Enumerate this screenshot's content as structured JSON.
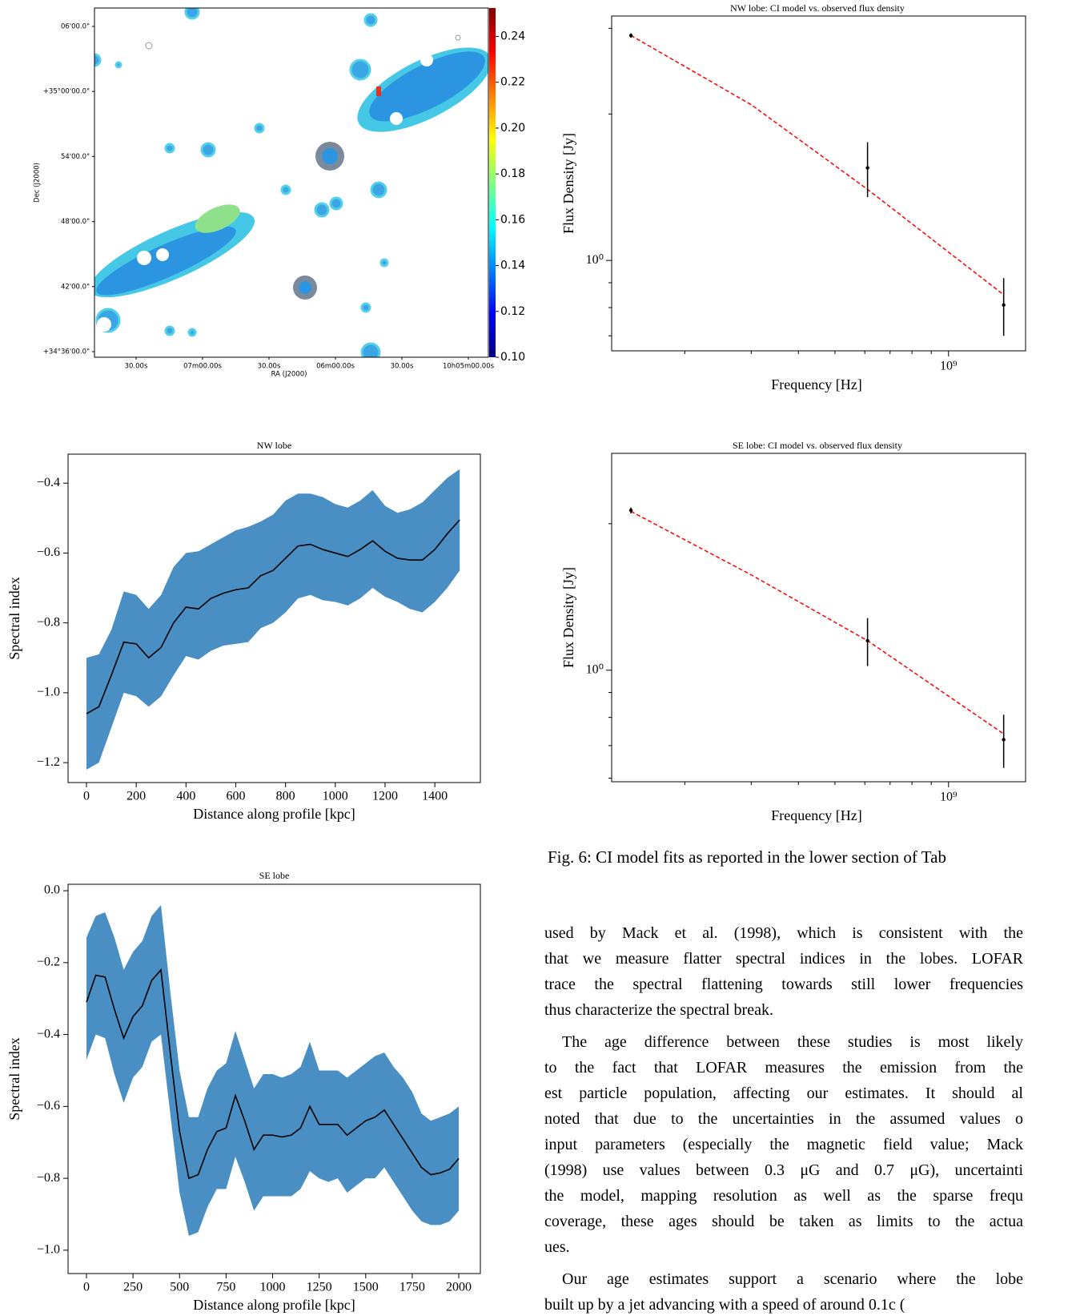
{
  "chart_data": [
    {
      "type": "image",
      "xlabel": "RA (J2000)",
      "ylabel": "Dec (J2000)",
      "xtick_labels": [
        "30.00s",
        "07m00.00s",
        "30.00s",
        "06m00.00s",
        "30.00s",
        "10h05m00.00s"
      ],
      "ytick_labels": [
        "06'00.0\"",
        "+35°00'00.0\"",
        "54'00.0\"",
        "48'00.0\"",
        "42'00.0\"",
        "+34°36'00.0\""
      ],
      "colorbar": {
        "colormap": "jet",
        "clim": [
          0.1,
          0.2524
        ],
        "ticks": [
          {
            "value": 0.1,
            "label": "0.10"
          },
          0.12,
          0.14,
          0.16,
          0.18,
          {
            "value": 0.2,
            "label": "0.20"
          },
          0.22,
          0.24
        ]
      }
    },
    {
      "type": "errorbar",
      "title": "NW lobe: CI model vs. observed flux density",
      "xlabel": "Frequency [Hz]",
      "ylabel": "Flux Density [Jy]",
      "xscale": "log",
      "yscale": "log",
      "xlim": [
        128000000,
        1600000000
      ],
      "ylim": [
        0.652,
        3.18
      ],
      "xticks": [
        {
          "value": 1000000000,
          "label": "10⁹"
        }
      ],
      "yticks": [
        {
          "value": 1,
          "label": "10⁰"
        }
      ],
      "xminor": [
        200000000,
        300000000,
        400000000,
        500000000,
        600000000,
        700000000,
        800000000,
        900000000
      ],
      "yminor": [
        0.7,
        0.8,
        0.9,
        2,
        3
      ],
      "observed": {
        "x": [
          144000000,
          610000000,
          1400000000
        ],
        "values": [
          2.9,
          1.55,
          0.81
        ],
        "errors": [
          0.03,
          0.2,
          0.11
        ],
        "color": "#000000"
      },
      "model": {
        "x": [
          144000000,
          300000000,
          610000000,
          1400000000
        ],
        "values": [
          2.9,
          2.09,
          1.4,
          0.85
        ],
        "color": "#ff0000"
      }
    },
    {
      "type": "band",
      "title": "NW lobe",
      "xlabel": "Distance along profile [kpc]",
      "ylabel": "Spectral index",
      "xlim": [
        -74,
        1583
      ],
      "ylim": [
        -1.257,
        -0.317
      ],
      "xticks": [
        0,
        200,
        400,
        600,
        800,
        1000,
        1200,
        1400
      ],
      "yticks": [
        {
          "value": -0.4,
          "label": "−0.4"
        },
        {
          "value": -0.6,
          "label": "−0.6"
        },
        {
          "value": -0.8,
          "label": "−0.8"
        },
        {
          "value": -1.0,
          "label": "−1.0"
        },
        {
          "value": -1.2,
          "label": "−1.2"
        }
      ],
      "color": "#4a8fc4",
      "line_color": "#000000",
      "x": [
        0,
        50,
        100,
        150,
        200,
        250,
        300,
        350,
        400,
        450,
        500,
        550,
        600,
        650,
        700,
        750,
        800,
        850,
        900,
        950,
        1000,
        1050,
        1100,
        1150,
        1200,
        1250,
        1300,
        1350,
        1400,
        1450,
        1500
      ],
      "values": [
        -1.06,
        -1.04,
        -0.95,
        -0.855,
        -0.86,
        -0.9,
        -0.87,
        -0.8,
        -0.755,
        -0.76,
        -0.73,
        -0.715,
        -0.705,
        -0.7,
        -0.665,
        -0.65,
        -0.615,
        -0.58,
        -0.575,
        -0.59,
        -0.6,
        -0.61,
        -0.59,
        -0.565,
        -0.595,
        -0.615,
        -0.62,
        -0.62,
        -0.59,
        -0.545,
        -0.505
      ],
      "upper": [
        -0.9,
        -0.89,
        -0.82,
        -0.71,
        -0.72,
        -0.76,
        -0.72,
        -0.64,
        -0.6,
        -0.595,
        -0.575,
        -0.555,
        -0.535,
        -0.525,
        -0.51,
        -0.49,
        -0.45,
        -0.43,
        -0.43,
        -0.44,
        -0.46,
        -0.47,
        -0.45,
        -0.42,
        -0.465,
        -0.485,
        -0.475,
        -0.455,
        -0.42,
        -0.385,
        -0.36
      ],
      "lower": [
        -1.22,
        -1.2,
        -1.1,
        -1.0,
        -1.01,
        -1.04,
        -1.01,
        -0.95,
        -0.895,
        -0.905,
        -0.88,
        -0.865,
        -0.86,
        -0.855,
        -0.815,
        -0.8,
        -0.77,
        -0.73,
        -0.72,
        -0.735,
        -0.74,
        -0.75,
        -0.73,
        -0.7,
        -0.725,
        -0.74,
        -0.76,
        -0.77,
        -0.74,
        -0.7,
        -0.65
      ]
    },
    {
      "type": "errorbar",
      "title": "SE lobe: CI model vs. observed flux density",
      "xlabel": "Frequency [Hz]",
      "ylabel": "Flux Density [Jy]",
      "xscale": "log",
      "yscale": "log",
      "xlim": [
        128000000,
        1600000000
      ],
      "ylim": [
        0.59,
        2.79
      ],
      "xticks": [
        {
          "value": 1000000000,
          "label": "10⁹"
        }
      ],
      "yticks": [
        {
          "value": 1,
          "label": "10⁰"
        }
      ],
      "xminor": [
        200000000,
        300000000,
        400000000,
        500000000,
        600000000,
        700000000,
        800000000,
        900000000
      ],
      "yminor": [
        0.6,
        0.7,
        0.8,
        0.9,
        2
      ],
      "observed": {
        "x": [
          144000000,
          610000000,
          1400000000
        ],
        "values": [
          2.13,
          1.15,
          0.72
        ],
        "errors": [
          0.03,
          0.13,
          0.09
        ],
        "color": "#000000"
      },
      "model": {
        "x": [
          144000000,
          300000000,
          610000000,
          1400000000
        ],
        "values": [
          2.12,
          1.57,
          1.15,
          0.74
        ],
        "color": "#ff0000"
      }
    },
    {
      "type": "band",
      "title": "SE lobe",
      "xlabel": "Distance along profile [kpc]",
      "ylabel": "Spectral index",
      "xlim": [
        -99,
        2116
      ],
      "ylim": [
        -1.065,
        0.018
      ],
      "xticks": [
        0,
        250,
        500,
        750,
        1000,
        1250,
        1500,
        1750,
        2000
      ],
      "yticks": [
        {
          "value": 0,
          "label": "0.0"
        },
        {
          "value": -0.2,
          "label": "−0.2"
        },
        {
          "value": -0.4,
          "label": "−0.4"
        },
        {
          "value": -0.6,
          "label": "−0.6"
        },
        {
          "value": -0.8,
          "label": "−0.8"
        },
        {
          "value": -1.0,
          "label": "−1.0"
        }
      ],
      "color": "#4a8fc4",
      "line_color": "#000000",
      "x": [
        0,
        50,
        100,
        150,
        200,
        250,
        300,
        350,
        400,
        450,
        500,
        550,
        600,
        650,
        700,
        750,
        800,
        850,
        900,
        950,
        1000,
        1050,
        1100,
        1150,
        1200,
        1250,
        1300,
        1350,
        1400,
        1450,
        1500,
        1550,
        1600,
        1650,
        1700,
        1750,
        1800,
        1850,
        1900,
        1950,
        2000
      ],
      "values": [
        -0.31,
        -0.235,
        -0.24,
        -0.33,
        -0.41,
        -0.35,
        -0.32,
        -0.25,
        -0.22,
        -0.45,
        -0.67,
        -0.8,
        -0.79,
        -0.72,
        -0.67,
        -0.66,
        -0.57,
        -0.64,
        -0.72,
        -0.68,
        -0.68,
        -0.685,
        -0.68,
        -0.66,
        -0.6,
        -0.65,
        -0.65,
        -0.65,
        -0.68,
        -0.66,
        -0.64,
        -0.63,
        -0.61,
        -0.65,
        -0.69,
        -0.73,
        -0.77,
        -0.79,
        -0.785,
        -0.775,
        -0.745
      ],
      "upper": [
        -0.13,
        -0.07,
        -0.06,
        -0.13,
        -0.22,
        -0.17,
        -0.14,
        -0.07,
        -0.04,
        -0.28,
        -0.5,
        -0.63,
        -0.63,
        -0.55,
        -0.5,
        -0.48,
        -0.39,
        -0.47,
        -0.55,
        -0.51,
        -0.51,
        -0.52,
        -0.51,
        -0.49,
        -0.42,
        -0.5,
        -0.5,
        -0.5,
        -0.52,
        -0.5,
        -0.48,
        -0.46,
        -0.45,
        -0.49,
        -0.52,
        -0.56,
        -0.62,
        -0.64,
        -0.63,
        -0.62,
        -0.6
      ],
      "lower": [
        -0.47,
        -0.4,
        -0.41,
        -0.51,
        -0.59,
        -0.52,
        -0.49,
        -0.42,
        -0.4,
        -0.62,
        -0.84,
        -0.96,
        -0.95,
        -0.88,
        -0.83,
        -0.83,
        -0.74,
        -0.81,
        -0.89,
        -0.85,
        -0.85,
        -0.85,
        -0.85,
        -0.83,
        -0.78,
        -0.8,
        -0.81,
        -0.8,
        -0.84,
        -0.82,
        -0.8,
        -0.8,
        -0.77,
        -0.81,
        -0.85,
        -0.89,
        -0.92,
        -0.93,
        -0.93,
        -0.92,
        -0.89
      ]
    }
  ],
  "caption": "Fig. 6: CI model fits as reported in the lower section of Tab",
  "paragraphs": [
    [
      "used by Mack et al. (1998), which is consistent with the",
      "that we measure flatter spectral indices in the lobes. LOFAR",
      "trace the spectral flattening towards still lower frequencies",
      "thus characterize the spectral break."
    ],
    [
      "The age difference between these studies is most likely",
      "to the fact that LOFAR measures the emission from the",
      "est particle population, affecting our estimates. It should al",
      "noted that due to the uncertainties in the assumed values o",
      "input parameters (especially the magnetic field value; Mack",
      "(1998) use values between 0.3 μG and 0.7 μG), uncertainti",
      "the model, mapping resolution as well as the sparse frequ",
      "coverage, these ages should be taken as limits to the actua",
      "ues."
    ],
    [
      "Our age estimates support a scenario where the lobe",
      "built up by a jet advancing with a speed of around 0.1c ("
    ]
  ]
}
